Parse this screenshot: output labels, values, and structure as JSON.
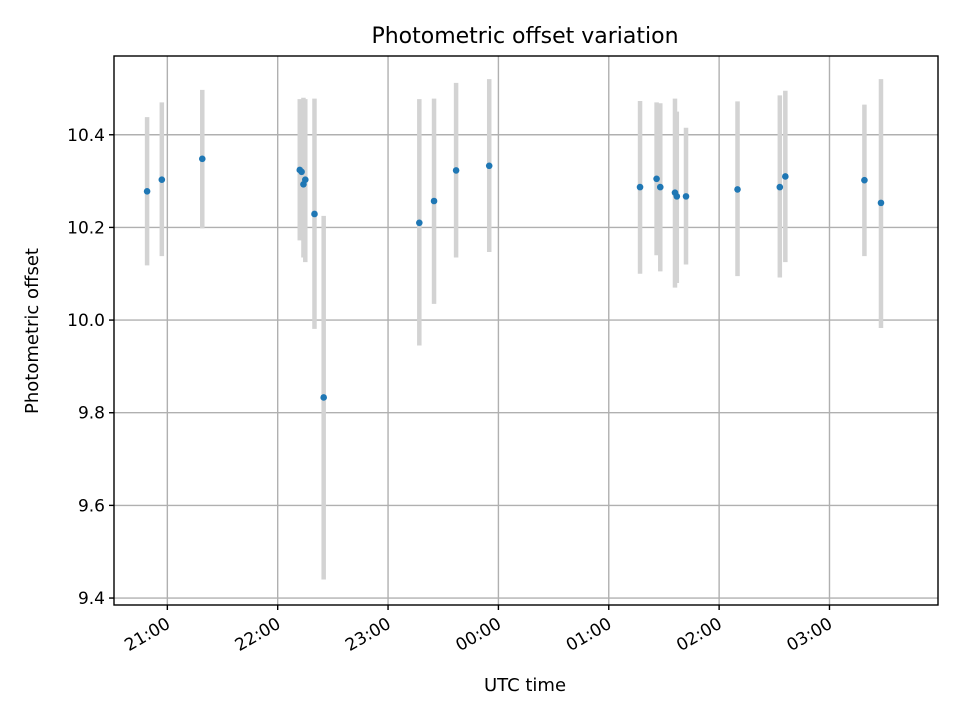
{
  "chart_data": {
    "type": "scatter",
    "title": "Photometric offset variation",
    "xlabel": "UTC time",
    "ylabel": "Photometric offset",
    "x_tick_labels": [
      "21:00",
      "22:00",
      "23:00",
      "00:00",
      "01:00",
      "02:00",
      "03:00"
    ],
    "x_tick_values": [
      "20:54",
      "21:54",
      "22:54",
      "23:54",
      "00:54",
      "01:54",
      "02:54"
    ],
    "y_tick_labels": [
      "9.4",
      "9.6",
      "9.8",
      "10.0",
      "10.2",
      "10.4"
    ],
    "y_tick_values": [
      9.4,
      9.6,
      9.8,
      10.0,
      10.2,
      10.4
    ],
    "xlim": [
      "20:25",
      "03:53"
    ],
    "ylim": [
      9.385,
      10.57
    ],
    "grid": true,
    "point_color": "#1f77b4",
    "errorbar_color": "#d3d3d3",
    "points": [
      {
        "x": "20:43",
        "y": 10.278,
        "lo": 10.118,
        "hi": 10.438
      },
      {
        "x": "20:51",
        "y": 10.303,
        "lo": 10.138,
        "hi": 10.47
      },
      {
        "x": "21:13",
        "y": 10.348,
        "lo": 10.198,
        "hi": 10.497
      },
      {
        "x": "22:06",
        "y": 10.324,
        "lo": 10.172,
        "hi": 10.477
      },
      {
        "x": "22:07",
        "y": 10.32,
        "lo": 10.175,
        "hi": 10.475
      },
      {
        "x": "22:08",
        "y": 10.293,
        "lo": 10.135,
        "hi": 10.48
      },
      {
        "x": "22:09",
        "y": 10.303,
        "lo": 10.125,
        "hi": 10.477
      },
      {
        "x": "22:14",
        "y": 10.229,
        "lo": 9.981,
        "hi": 10.478
      },
      {
        "x": "22:19",
        "y": 9.833,
        "lo": 9.44,
        "hi": 10.225
      },
      {
        "x": "23:11",
        "y": 10.21,
        "lo": 9.945,
        "hi": 10.477
      },
      {
        "x": "23:19",
        "y": 10.257,
        "lo": 10.035,
        "hi": 10.478
      },
      {
        "x": "23:31",
        "y": 10.323,
        "lo": 10.135,
        "hi": 10.512
      },
      {
        "x": "23:49",
        "y": 10.333,
        "lo": 10.147,
        "hi": 10.52
      },
      {
        "x": "01:11",
        "y": 10.287,
        "lo": 10.1,
        "hi": 10.473
      },
      {
        "x": "01:20",
        "y": 10.305,
        "lo": 10.14,
        "hi": 10.47
      },
      {
        "x": "01:22",
        "y": 10.287,
        "lo": 10.105,
        "hi": 10.468
      },
      {
        "x": "01:30",
        "y": 10.275,
        "lo": 10.07,
        "hi": 10.478
      },
      {
        "x": "01:31",
        "y": 10.267,
        "lo": 10.08,
        "hi": 10.45
      },
      {
        "x": "01:36",
        "y": 10.267,
        "lo": 10.12,
        "hi": 10.415
      },
      {
        "x": "02:04",
        "y": 10.282,
        "lo": 10.095,
        "hi": 10.472
      },
      {
        "x": "02:27",
        "y": 10.287,
        "lo": 10.092,
        "hi": 10.485
      },
      {
        "x": "02:30",
        "y": 10.31,
        "lo": 10.125,
        "hi": 10.495
      },
      {
        "x": "03:13",
        "y": 10.302,
        "lo": 10.138,
        "hi": 10.465
      },
      {
        "x": "03:22",
        "y": 10.253,
        "lo": 9.983,
        "hi": 10.52
      }
    ]
  }
}
